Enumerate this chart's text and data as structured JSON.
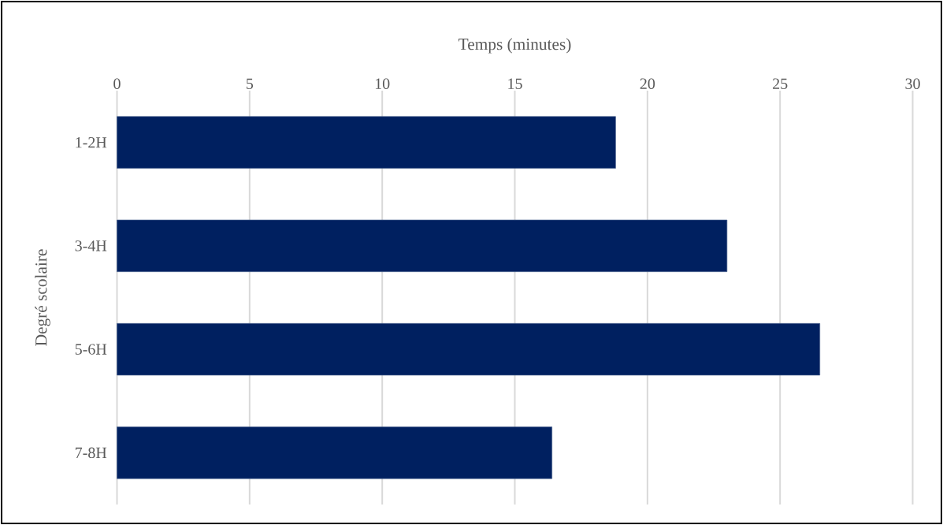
{
  "chart_data": {
    "type": "bar",
    "orientation": "horizontal",
    "xlabel": "Temps (minutes)",
    "ylabel": "Degré scolaire",
    "categories": [
      "1-2H",
      "3-4H",
      "5-6H",
      "7-8H"
    ],
    "values": [
      18.8,
      23.0,
      26.5,
      16.4
    ],
    "color": "#002060",
    "xlim": [
      0,
      30
    ],
    "xticks": [
      0,
      5,
      10,
      15,
      20,
      25,
      30
    ],
    "grid": "x"
  }
}
